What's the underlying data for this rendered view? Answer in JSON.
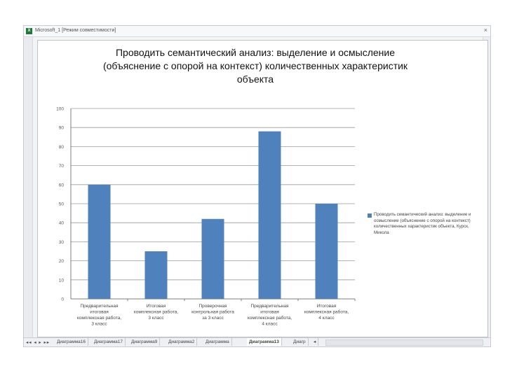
{
  "window": {
    "title": "Microsoft_1 [Режим совместимости]",
    "app_icon": "excel-icon",
    "close_glyph": "×"
  },
  "chart_data": {
    "type": "bar",
    "title_lines": [
      "Проводить семантический анализ: выделение и осмысление",
      "(объяснение с опорой на контекст) количественных характеристик",
      "объекта"
    ],
    "categories": [
      [
        "Предварительная",
        "итоговая",
        "комплексная работа,",
        "3 класс"
      ],
      [
        "Итоговая",
        "комплексная работа,",
        "3 класс"
      ],
      [
        "Проверочная",
        "контрольная работа",
        "за 3 класс"
      ],
      [
        "Предварительная",
        "итоговая",
        "комплексная работа,",
        "4 класс"
      ],
      [
        "Итоговая",
        "комплексная работа,",
        "4 класс"
      ]
    ],
    "values": [
      60,
      25,
      42,
      88,
      50
    ],
    "ylim": [
      0,
      100
    ],
    "yticks": [
      "100",
      "90",
      "80",
      "70",
      "60",
      "50",
      "40",
      "30",
      "20",
      "10",
      "0"
    ],
    "grid": true,
    "legend_position": "right",
    "series_name": "Проводить семантический анализ: выделение и осмысление (объяснение с опорой на контекст) количественных характеристик объекта, Курск, Микола",
    "bar_color": "#4f81bd"
  },
  "tabs": {
    "nav_glyphs": "◂◂ ◂ ▸ ▸▸",
    "items": [
      "Диаграмма16",
      "Диаграмма17",
      "Диаграмма9",
      "Диаграмма2",
      "Диаграмма",
      "Диаграмма13",
      "Диагр"
    ],
    "active_index": 5,
    "more_glyph": "◂"
  }
}
